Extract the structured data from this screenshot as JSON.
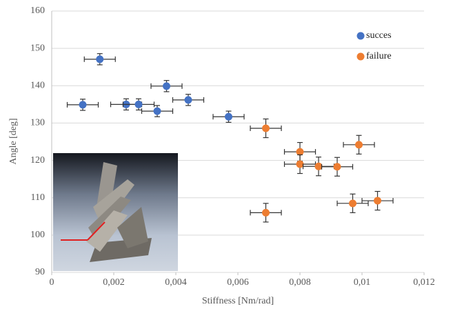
{
  "chart_data": {
    "type": "scatter",
    "x_label": "Stiffness [Nm/rad]",
    "y_label": "Angle [deg]",
    "xlim": [
      0,
      0.012
    ],
    "ylim": [
      90,
      160
    ],
    "xticks": [
      0,
      {
        "value": 0.002,
        "label": "0,002"
      },
      {
        "value": 0.004,
        "label": "0,004"
      },
      {
        "value": 0.006,
        "label": "0,006"
      },
      {
        "value": 0.008,
        "label": "0,008"
      },
      {
        "value": 0.01,
        "label": "0,01"
      },
      {
        "value": 0.012,
        "label": "0,012"
      }
    ],
    "yticks": [
      90,
      100,
      110,
      120,
      130,
      140,
      150,
      160
    ],
    "grid": true,
    "series": [
      {
        "name": "succes",
        "color": "#4472c4",
        "x": [
          0.001,
          0.00155,
          0.0024,
          0.0028,
          0.0034,
          0.0037,
          0.0044,
          0.0057
        ],
        "values": [
          134.9,
          147.1,
          135,
          135,
          133.2,
          139.9,
          136.2,
          131.7
        ],
        "x_errors": [
          0.0005,
          0.0005,
          0.0005,
          0.0005,
          0.0005,
          0.0005,
          0.0005,
          0.0005
        ],
        "y_errors": [
          1.5,
          1.5,
          1.5,
          1.5,
          1.5,
          1.5,
          1.5,
          1.5
        ]
      },
      {
        "name": "failure",
        "color": "#ed7d31",
        "x": [
          0.0069,
          0.008,
          0.008,
          0.0086,
          0.0092,
          0.0099,
          0.0069,
          0.0097,
          0.0105
        ],
        "values": [
          128.6,
          122.3,
          119,
          118.4,
          118.3,
          124.2,
          106,
          108.5,
          109.2
        ],
        "x_errors": [
          0.0005,
          0.0005,
          0.0005,
          0.0005,
          0.0005,
          0.0005,
          0.0005,
          0.0005,
          0.0005
        ],
        "y_errors": [
          2.5,
          2.5,
          2.5,
          2.5,
          2.5,
          2.5,
          2.5,
          2.5,
          2.5
        ]
      }
    ]
  }
}
